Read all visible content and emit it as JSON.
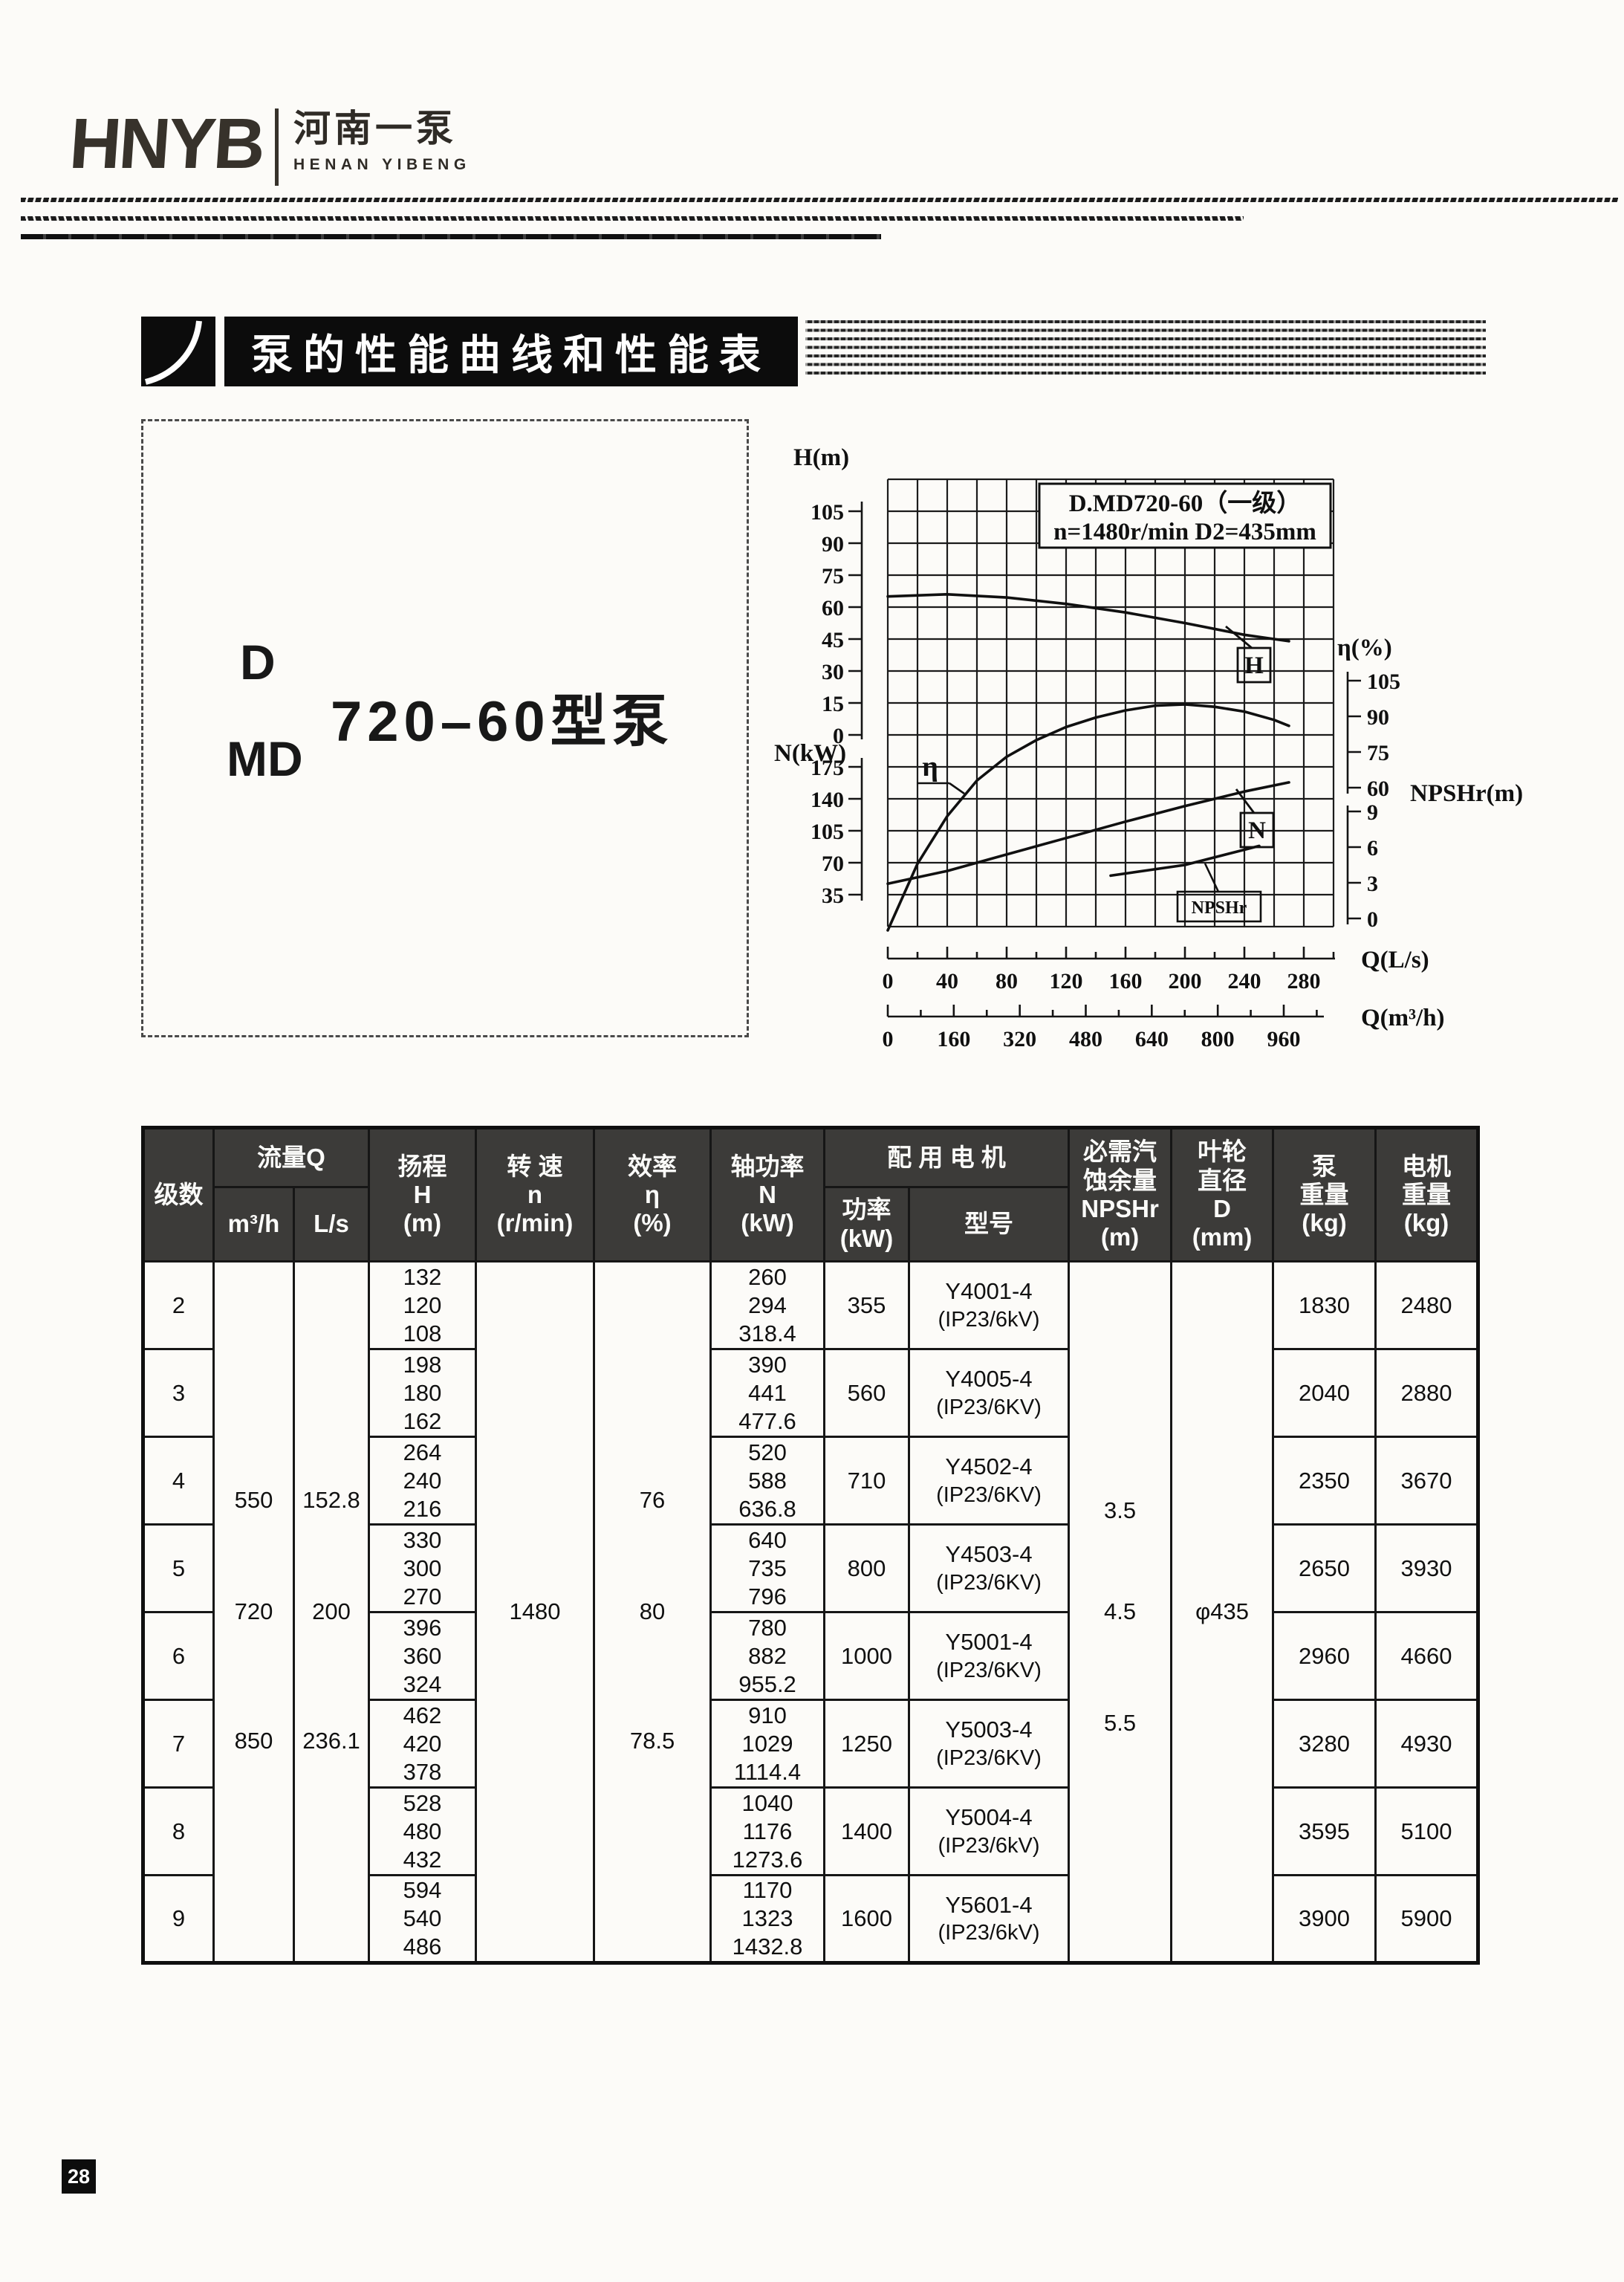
{
  "logo": {
    "abbr": "HNYB",
    "cn": "河南一泵",
    "en": "HENAN YIBENG"
  },
  "section": {
    "title": "泵的性能曲线和性能表"
  },
  "model_box": {
    "series_top": "D",
    "series_bottom": "MD",
    "model": "720–60型泵"
  },
  "page_number": "28",
  "chart": {
    "title_line1": "D.MD720-60（一级）",
    "title_line2": "n=1480r/min  D2=435mm",
    "left_axis_head_label": "H(m)",
    "left_axis_power_label": "N(kW)",
    "right_axis_eff_label": "η(%)",
    "right_axis_npshr_label": "NPSHr(m)",
    "x_axis_ls_label": "Q(L/s)",
    "x_axis_m3h_label": "Q(m³/h)",
    "h_ticks": [
      105,
      90,
      75,
      60,
      45,
      30,
      15,
      0
    ],
    "n_ticks": [
      175,
      140,
      105,
      70,
      35
    ],
    "eff_ticks": [
      105,
      90,
      75,
      60
    ],
    "npshr_ticks": [
      9,
      6,
      3,
      0
    ],
    "q_ls_ticks": [
      0,
      40,
      80,
      120,
      160,
      200,
      240,
      280
    ],
    "q_m3h_ticks": [
      0,
      160,
      320,
      480,
      640,
      800,
      960
    ],
    "curve_labels": {
      "head": "H",
      "eff": "η",
      "power": "N",
      "npshr": "NPSHr"
    }
  },
  "chart_data": {
    "type": "line",
    "title": "D.MD720-60（一级） n=1480r/min D2=435mm",
    "xlabel": "Q(L/s)",
    "secondary_xlabel": "Q(m³/h)",
    "x_range_ls": [
      0,
      300
    ],
    "grid": true,
    "series": [
      {
        "name": "H",
        "y_axis": "H(m)",
        "x": [
          0,
          40,
          80,
          120,
          160,
          200,
          240,
          270
        ],
        "y": [
          65,
          66,
          64.5,
          61.5,
          57.5,
          52.5,
          47,
          44
        ]
      },
      {
        "name": "η",
        "y_axis": "η(%)",
        "x": [
          0,
          20,
          40,
          60,
          80,
          100,
          120,
          140,
          160,
          180,
          200,
          220,
          240,
          260,
          270
        ],
        "y": [
          0,
          28,
          48,
          63,
          73,
          80,
          85.5,
          89.5,
          92.5,
          94.5,
          95,
          94,
          92,
          88.5,
          86
        ]
      },
      {
        "name": "N",
        "y_axis": "N(kW)",
        "x": [
          0,
          40,
          80,
          120,
          160,
          200,
          240,
          270
        ],
        "y": [
          47,
          61,
          79,
          97,
          115,
          132,
          148,
          158
        ]
      },
      {
        "name": "NPSHr",
        "y_axis": "NPSHr(m)",
        "x": [
          150,
          200,
          250
        ],
        "y": [
          3.6,
          4.5,
          6.1
        ]
      }
    ]
  },
  "table": {
    "header": {
      "stage": "级数",
      "flow": "流量Q",
      "flow_m3h": "m³/h",
      "flow_ls": "L/s",
      "head": "扬程\nH\n(m)",
      "speed": "转 速\nn\n(r/min)",
      "eff": "效率\nη\n(%)",
      "shaft_power": "轴功率\nN\n(kW)",
      "motor": "配 用 电 机",
      "motor_power": "功率\n(kW)",
      "motor_model": "型号",
      "npshr": "必需汽\n蚀余量\nNPSHr\n(m)",
      "impeller": "叶轮\n直径\nD\n(mm)",
      "pump_weight": "泵\n重量\n(kg)",
      "motor_weight": "电机\n重量\n(kg)"
    },
    "merged": {
      "flow_m3h": [
        "550",
        "720",
        "850"
      ],
      "flow_ls": [
        "152.8",
        "200",
        "236.1"
      ],
      "speed": "1480",
      "eff": [
        "76",
        "80",
        "78.5"
      ],
      "npshr": [
        "3.5",
        "4.5",
        "5.5"
      ],
      "impeller": "φ435"
    },
    "rows": [
      {
        "stage": "2",
        "head": [
          "132",
          "120",
          "108"
        ],
        "shaft_power": [
          "260",
          "294",
          "318.4"
        ],
        "motor_power": "355",
        "motor_model": "Y4001-4",
        "motor_enclosure": "(IP23/6kV)",
        "pump_weight": "1830",
        "motor_weight": "2480"
      },
      {
        "stage": "3",
        "head": [
          "198",
          "180",
          "162"
        ],
        "shaft_power": [
          "390",
          "441",
          "477.6"
        ],
        "motor_power": "560",
        "motor_model": "Y4005-4",
        "motor_enclosure": "(IP23/6KV)",
        "pump_weight": "2040",
        "motor_weight": "2880"
      },
      {
        "stage": "4",
        "head": [
          "264",
          "240",
          "216"
        ],
        "shaft_power": [
          "520",
          "588",
          "636.8"
        ],
        "motor_power": "710",
        "motor_model": "Y4502-4",
        "motor_enclosure": "(IP23/6KV)",
        "pump_weight": "2350",
        "motor_weight": "3670"
      },
      {
        "stage": "5",
        "head": [
          "330",
          "300",
          "270"
        ],
        "shaft_power": [
          "640",
          "735",
          "796"
        ],
        "motor_power": "800",
        "motor_model": "Y4503-4",
        "motor_enclosure": "(IP23/6KV)",
        "pump_weight": "2650",
        "motor_weight": "3930"
      },
      {
        "stage": "6",
        "head": [
          "396",
          "360",
          "324"
        ],
        "shaft_power": [
          "780",
          "882",
          "955.2"
        ],
        "motor_power": "1000",
        "motor_model": "Y5001-4",
        "motor_enclosure": "(IP23/6KV)",
        "pump_weight": "2960",
        "motor_weight": "4660"
      },
      {
        "stage": "7",
        "head": [
          "462",
          "420",
          "378"
        ],
        "shaft_power": [
          "910",
          "1029",
          "1114.4"
        ],
        "motor_power": "1250",
        "motor_model": "Y5003-4",
        "motor_enclosure": "(IP23/6KV)",
        "pump_weight": "3280",
        "motor_weight": "4930"
      },
      {
        "stage": "8",
        "head": [
          "528",
          "480",
          "432"
        ],
        "shaft_power": [
          "1040",
          "1176",
          "1273.6"
        ],
        "motor_power": "1400",
        "motor_model": "Y5004-4",
        "motor_enclosure": "(IP23/6kV)",
        "pump_weight": "3595",
        "motor_weight": "5100"
      },
      {
        "stage": "9",
        "head": [
          "594",
          "540",
          "486"
        ],
        "shaft_power": [
          "1170",
          "1323",
          "1432.8"
        ],
        "motor_power": "1600",
        "motor_model": "Y5601-4",
        "motor_enclosure": "(IP23/6kV)",
        "pump_weight": "3900",
        "motor_weight": "5900"
      }
    ]
  }
}
